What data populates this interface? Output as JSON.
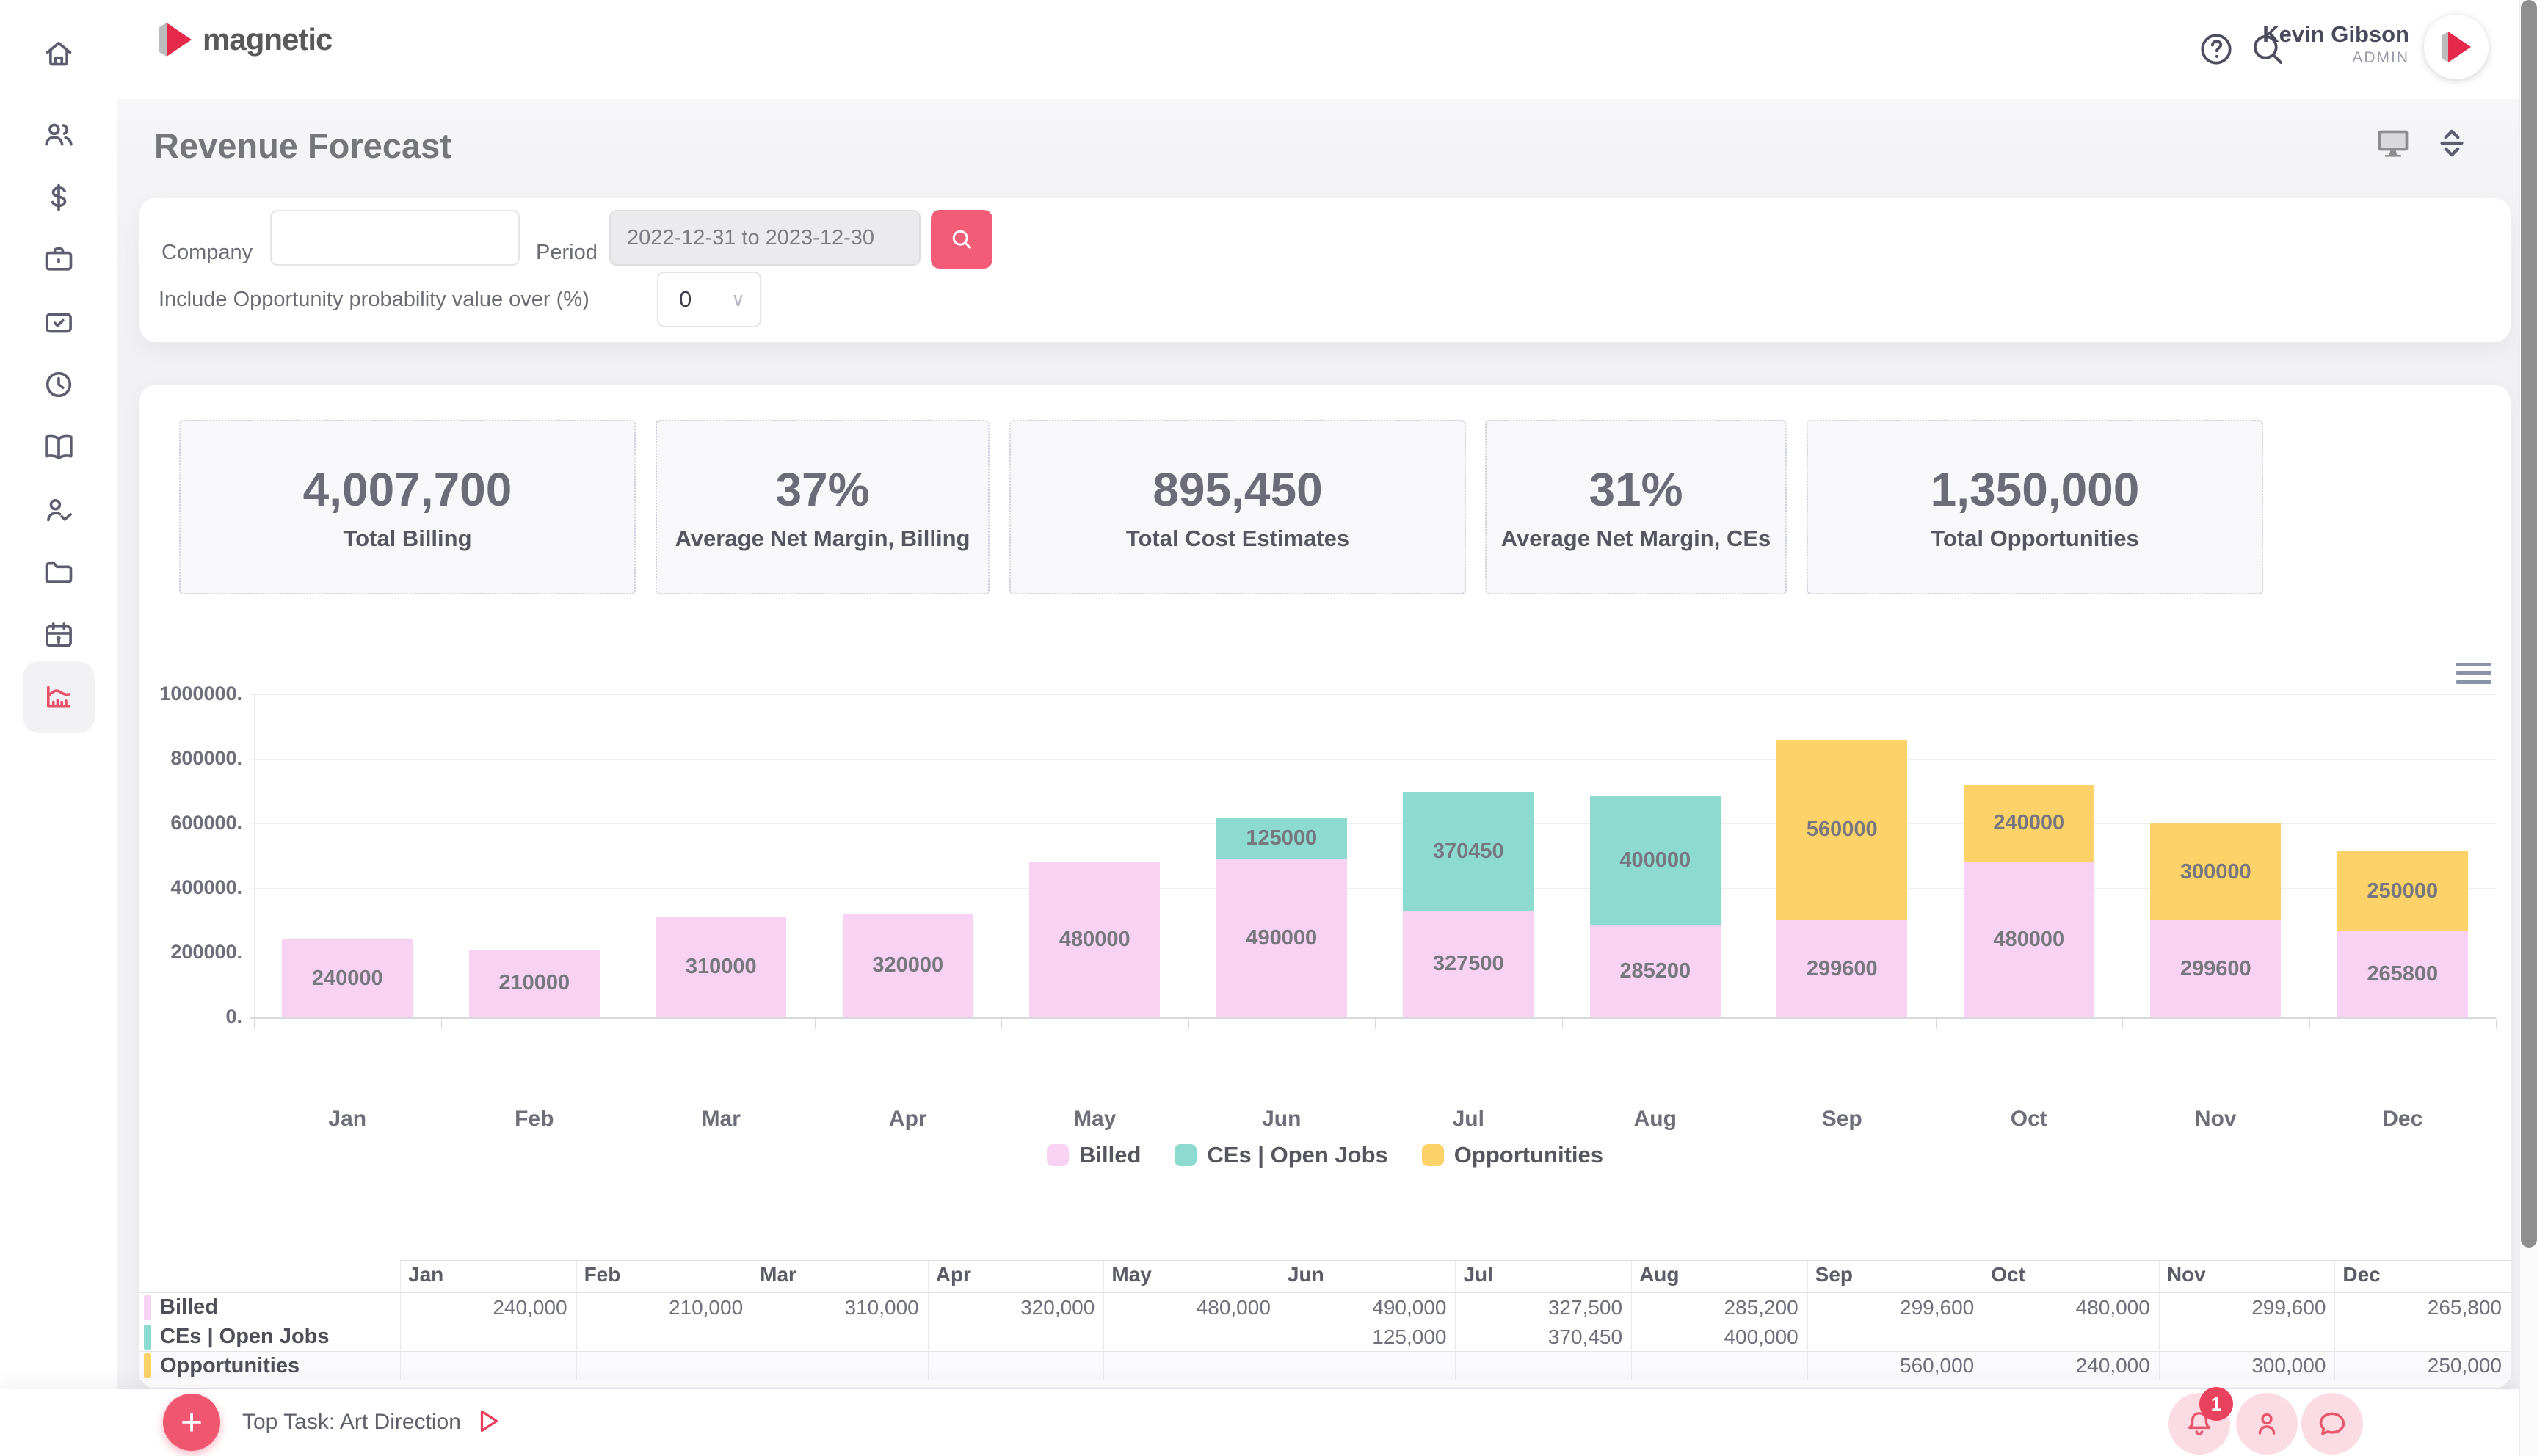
{
  "brand": {
    "name": "magnetic"
  },
  "header": {
    "user_name": "Kevin Gibson",
    "user_role": "ADMIN"
  },
  "sidebar": {
    "items": [
      {
        "icon": "home-icon",
        "active": false
      },
      {
        "icon": "people-icon",
        "active": false
      },
      {
        "icon": "dollar-icon",
        "active": false
      },
      {
        "icon": "briefcase-icon",
        "active": false
      },
      {
        "icon": "task-check-icon",
        "active": false
      },
      {
        "icon": "clock-icon",
        "active": false
      },
      {
        "icon": "book-icon",
        "active": false
      },
      {
        "icon": "person-check-icon",
        "active": false
      },
      {
        "icon": "folder-icon",
        "active": false
      },
      {
        "icon": "calendar-icon",
        "active": false
      },
      {
        "icon": "chart-icon",
        "active": true
      }
    ]
  },
  "page": {
    "title": "Revenue Forecast"
  },
  "filters": {
    "company_label": "Company",
    "company_value": "",
    "period_label": "Period",
    "period_value": "2022-12-31 to 2023-12-30",
    "probability_label": "Include Opportunity probability value over (%)",
    "probability_value": "0"
  },
  "kpis": [
    {
      "value": "4,007,700",
      "label": "Total Billing"
    },
    {
      "value": "37%",
      "label": "Average Net Margin, Billing"
    },
    {
      "value": "895,450",
      "label": "Total Cost Estimates"
    },
    {
      "value": "31%",
      "label": "Average Net Margin, CEs"
    },
    {
      "value": "1,350,000",
      "label": "Total Opportunities"
    }
  ],
  "chart_data": {
    "type": "bar",
    "stacked": true,
    "title": "",
    "xlabel": "",
    "ylabel": "",
    "ylim": [
      0,
      1000000
    ],
    "y_ticks": [
      1000000,
      800000,
      600000,
      400000,
      200000,
      0
    ],
    "y_tick_labels": [
      "1000000.",
      "800000.",
      "600000.",
      "400000.",
      "200000.",
      "0."
    ],
    "grid": true,
    "legend_position": "bottom",
    "categories": [
      "Jan",
      "Feb",
      "Mar",
      "Apr",
      "May",
      "Jun",
      "Jul",
      "Aug",
      "Sep",
      "Oct",
      "Nov",
      "Dec"
    ],
    "series": [
      {
        "name": "Billed",
        "color": "#f8d2f3",
        "values": [
          240000,
          210000,
          310000,
          320000,
          480000,
          490000,
          327500,
          285200,
          299600,
          480000,
          299600,
          265800
        ]
      },
      {
        "name": "CEs | Open Jobs",
        "color": "#8ddbd0",
        "values": [
          null,
          null,
          null,
          null,
          null,
          125000,
          370450,
          400000,
          null,
          null,
          null,
          null
        ]
      },
      {
        "name": "Opportunities",
        "color": "#fcd269",
        "values": [
          null,
          null,
          null,
          null,
          null,
          null,
          null,
          null,
          560000,
          240000,
          300000,
          250000
        ]
      }
    ]
  },
  "table": {
    "columns": [
      "Jan",
      "Feb",
      "Mar",
      "Apr",
      "May",
      "Jun",
      "Jul",
      "Aug",
      "Sep",
      "Oct",
      "Nov",
      "Dec"
    ],
    "rows": [
      {
        "name": "Billed",
        "color": "#f8d2f3",
        "values": [
          240000,
          210000,
          310000,
          320000,
          480000,
          490000,
          327500,
          285200,
          299600,
          480000,
          299600,
          265800
        ]
      },
      {
        "name": "CEs | Open Jobs",
        "color": "#8ddbd0",
        "values": [
          null,
          null,
          null,
          null,
          null,
          125000,
          370450,
          400000,
          null,
          null,
          null,
          null
        ]
      },
      {
        "name": "Opportunities",
        "color": "#fcd269",
        "values": [
          null,
          null,
          null,
          null,
          null,
          null,
          null,
          null,
          560000,
          240000,
          300000,
          250000
        ]
      }
    ]
  },
  "footer": {
    "top_task": "Top Task: Art Direction",
    "notification_count": "1"
  },
  "colors": {
    "accent": "#f0566f",
    "logo_red": "#e5294a",
    "icon_gray": "#5c5d6e"
  }
}
